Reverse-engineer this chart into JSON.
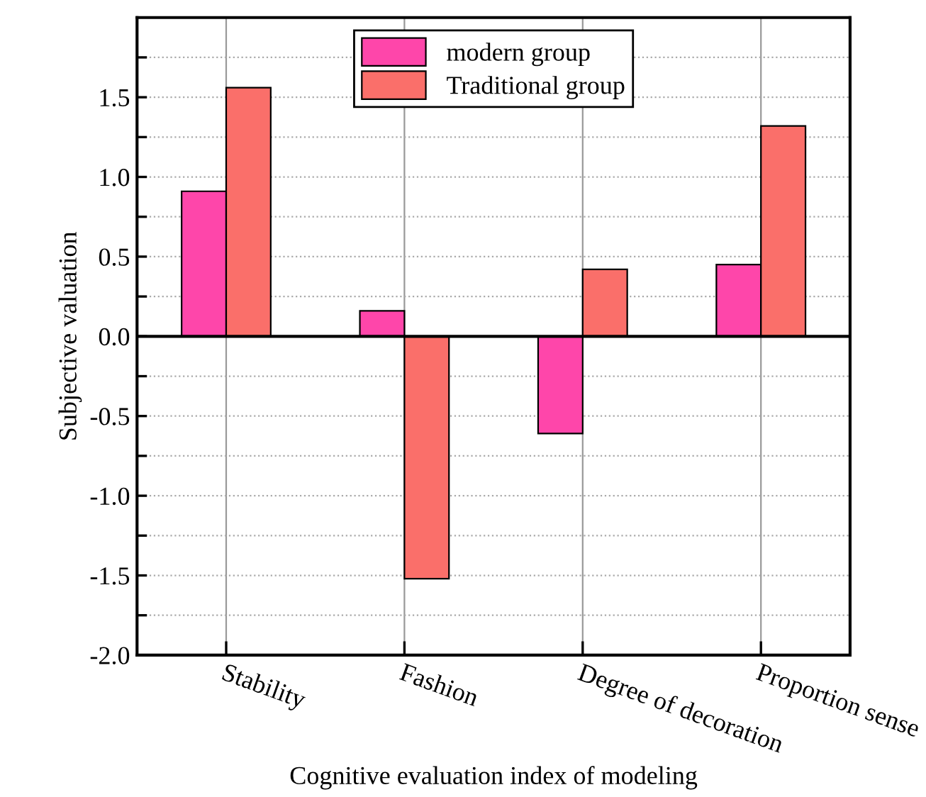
{
  "chart_data": {
    "type": "bar",
    "xlabel": "Cognitive evaluation index of modeling",
    "ylabel": "Subjective valuation",
    "categories": [
      "Stability",
      "Fashion",
      "Degree of decoration",
      "Proportion sense"
    ],
    "series": [
      {
        "name": "modern group",
        "color": "#fe46aa",
        "values": [
          0.91,
          0.16,
          -0.61,
          0.45
        ]
      },
      {
        "name": "Traditional group",
        "color": "#fa6f6a",
        "values": [
          1.56,
          -1.52,
          0.42,
          1.32
        ]
      }
    ],
    "ylim": [
      -2.0,
      2.0
    ],
    "yticks": [
      {
        "value": -2.0,
        "label": "-2.0"
      },
      {
        "value": -1.75,
        "label": null
      },
      {
        "value": -1.5,
        "label": "-1.5"
      },
      {
        "value": -1.25,
        "label": null
      },
      {
        "value": -1.0,
        "label": "-1.0"
      },
      {
        "value": -0.75,
        "label": null
      },
      {
        "value": -0.5,
        "label": "-0.5"
      },
      {
        "value": -0.25,
        "label": null
      },
      {
        "value": 0.0,
        "label": "0.0"
      },
      {
        "value": 0.25,
        "label": null
      },
      {
        "value": 0.5,
        "label": "0.5"
      },
      {
        "value": 0.75,
        "label": null
      },
      {
        "value": 1.0,
        "label": "1.0"
      },
      {
        "value": 1.25,
        "label": null
      },
      {
        "value": 1.5,
        "label": "1.5"
      },
      {
        "value": 1.75,
        "label": null
      }
    ],
    "grid": true,
    "legend": "top"
  }
}
